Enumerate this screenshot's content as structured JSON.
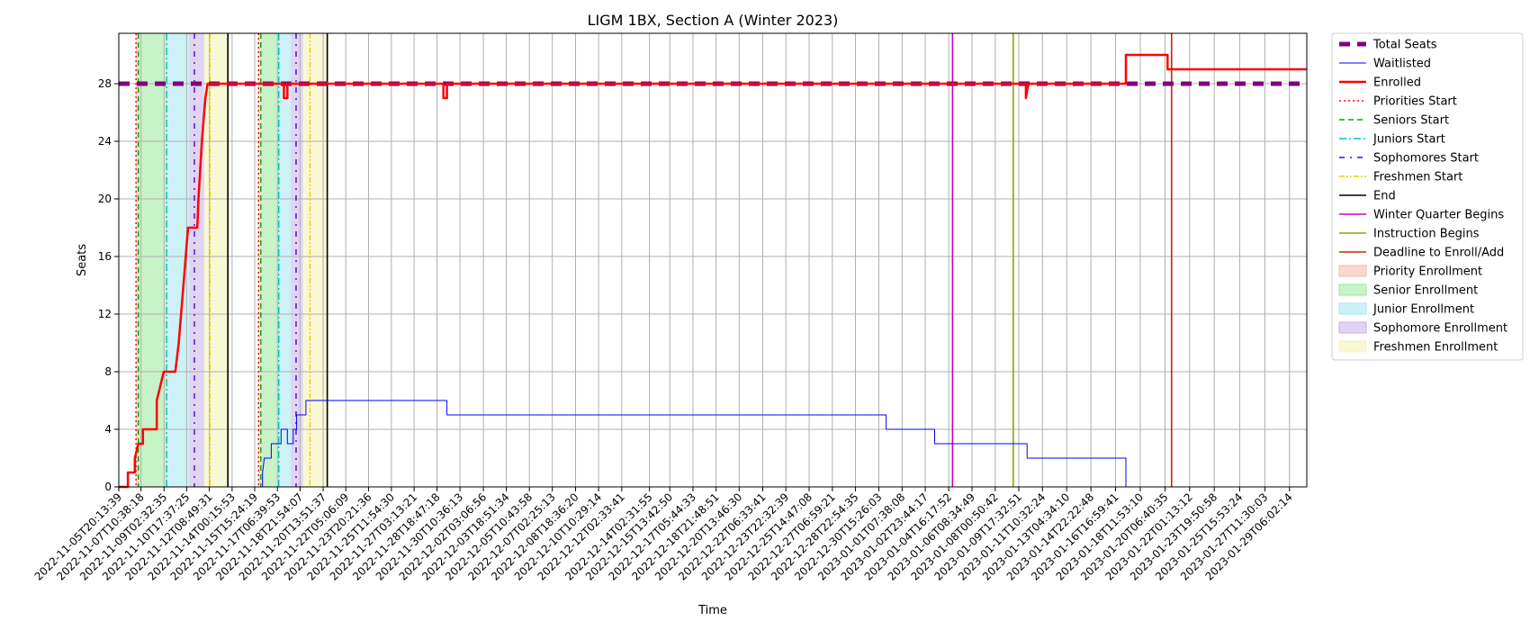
{
  "chart_data": {
    "type": "line",
    "title": "LIGM 1BX, Section A (Winter 2023)",
    "xlabel": "Time",
    "ylabel": "Seats",
    "ylim": [
      0,
      31.5
    ],
    "yticks": [
      0,
      4,
      8,
      12,
      16,
      20,
      24,
      28
    ],
    "grid": true,
    "legend_position": "outside right",
    "xlim": [
      "2022-11-05T20:13:39",
      "2023-01-30T12:00:00"
    ],
    "x_ticks": [
      "2022-11-05T20:13:39",
      "2022-11-07T10:38:18",
      "2022-11-09T02:32:35",
      "2022-11-10T17:37:25",
      "2022-11-12T08:49:31",
      "2022-11-14T00:15:53",
      "2022-11-15T15:24:19",
      "2022-11-17T06:39:53",
      "2022-11-18T21:54:07",
      "2022-11-20T13:51:37",
      "2022-11-22T05:06:09",
      "2022-11-23T20:21:36",
      "2022-11-25T11:54:30",
      "2022-11-27T03:13:21",
      "2022-11-28T18:47:18",
      "2022-11-30T10:36:13",
      "2022-12-02T03:06:56",
      "2022-12-03T18:51:34",
      "2022-12-05T10:43:58",
      "2022-12-07T02:25:13",
      "2022-12-08T18:36:20",
      "2022-12-10T10:29:14",
      "2022-12-12T02:33:41",
      "2022-12-14T02:31:55",
      "2022-12-15T13:42:50",
      "2022-12-17T05:44:33",
      "2022-12-18T21:48:51",
      "2022-12-20T13:46:30",
      "2022-12-22T06:33:41",
      "2022-12-23T22:32:39",
      "2022-12-25T14:47:08",
      "2022-12-27T06:59:21",
      "2022-12-28T22:54:35",
      "2022-12-30T15:26:03",
      "2023-01-01T07:38:08",
      "2023-01-02T23:44:17",
      "2023-01-04T16:17:52",
      "2023-01-06T08:34:49",
      "2023-01-08T00:50:42",
      "2023-01-09T17:32:51",
      "2023-01-11T10:32:24",
      "2023-01-13T04:34:10",
      "2023-01-14T22:22:48",
      "2023-01-16T16:59:41",
      "2023-01-18T11:53:10",
      "2023-01-20T06:40:35",
      "2023-01-22T01:13:12",
      "2023-01-23T19:50:58",
      "2023-01-25T15:53:24",
      "2023-01-27T11:30:03",
      "2023-01-29T06:02:14"
    ],
    "series": [
      {
        "name": "Total Seats",
        "color": "#800080",
        "style": "thick-dashed",
        "points": [
          [
            "2022-11-05T20:13:39",
            28
          ],
          [
            "2023-01-30T12:00:00",
            28
          ]
        ]
      },
      {
        "name": "Waitlisted",
        "color": "#0000ff",
        "style": "solid-thin",
        "points": [
          [
            "2022-11-05T20:13:39",
            0
          ],
          [
            "2022-11-16T05:00:00",
            0
          ],
          [
            "2022-11-16T05:00:00",
            1
          ],
          [
            "2022-11-16T08:00:00",
            2
          ],
          [
            "2022-11-16T20:00:00",
            2
          ],
          [
            "2022-11-16T20:00:00",
            3
          ],
          [
            "2022-11-17T13:00:00",
            3
          ],
          [
            "2022-11-17T13:00:00",
            4
          ],
          [
            "2022-11-18T00:00:00",
            4
          ],
          [
            "2022-11-18T00:00:00",
            3
          ],
          [
            "2022-11-18T10:00:00",
            3
          ],
          [
            "2022-11-18T10:00:00",
            4
          ],
          [
            "2022-11-18T16:00:00",
            4
          ],
          [
            "2022-11-18T16:00:00",
            5
          ],
          [
            "2022-11-19T08:00:00",
            5
          ],
          [
            "2022-11-19T08:00:00",
            6
          ],
          [
            "2022-11-29T12:00:00",
            6
          ],
          [
            "2022-11-29T12:00:00",
            5
          ],
          [
            "2022-12-31T04:00:00",
            5
          ],
          [
            "2022-12-31T04:00:00",
            4
          ],
          [
            "2023-01-03T16:00:00",
            4
          ],
          [
            "2023-01-03T16:00:00",
            3
          ],
          [
            "2023-01-10T08:00:00",
            3
          ],
          [
            "2023-01-10T08:00:00",
            2
          ],
          [
            "2023-01-17T11:00:00",
            2
          ],
          [
            "2023-01-17T11:00:00",
            0
          ],
          [
            "2023-01-30T12:00:00",
            0
          ]
        ]
      },
      {
        "name": "Enrolled",
        "color": "#ff0000",
        "style": "solid-thick",
        "points": [
          [
            "2022-11-05T20:13:39",
            0
          ],
          [
            "2022-11-06T12:00:00",
            0
          ],
          [
            "2022-11-06T12:00:00",
            1
          ],
          [
            "2022-11-07T00:00:00",
            1
          ],
          [
            "2022-11-07T00:00:00",
            2
          ],
          [
            "2022-11-07T06:00:00",
            3
          ],
          [
            "2022-11-07T14:00:00",
            3
          ],
          [
            "2022-11-07T14:00:00",
            4
          ],
          [
            "2022-11-08T14:00:00",
            4
          ],
          [
            "2022-11-08T14:00:00",
            6
          ],
          [
            "2022-11-08T20:00:00",
            7
          ],
          [
            "2022-11-09T02:00:00",
            8
          ],
          [
            "2022-11-09T22:00:00",
            8
          ],
          [
            "2022-11-10T04:00:00",
            10
          ],
          [
            "2022-11-10T10:00:00",
            13
          ],
          [
            "2022-11-10T14:00:00",
            15
          ],
          [
            "2022-11-10T20:00:00",
            18
          ],
          [
            "2022-11-11T12:00:00",
            18
          ],
          [
            "2022-11-11T14:00:00",
            20
          ],
          [
            "2022-11-11T20:00:00",
            24
          ],
          [
            "2022-11-12T02:00:00",
            27
          ],
          [
            "2022-11-12T06:00:00",
            28
          ],
          [
            "2022-11-17T18:00:00",
            28
          ],
          [
            "2022-11-17T18:00:00",
            27
          ],
          [
            "2022-11-18T00:00:00",
            27
          ],
          [
            "2022-11-18T00:00:00",
            28
          ],
          [
            "2022-11-29T06:00:00",
            28
          ],
          [
            "2022-11-29T06:00:00",
            27
          ],
          [
            "2022-11-29T12:00:00",
            27
          ],
          [
            "2022-11-29T12:00:00",
            28
          ],
          [
            "2023-01-10T06:00:00",
            28
          ],
          [
            "2023-01-10T06:00:00",
            27
          ],
          [
            "2023-01-10T10:00:00",
            28
          ],
          [
            "2023-01-17T11:00:00",
            28
          ],
          [
            "2023-01-17T11:00:00",
            30
          ],
          [
            "2023-01-20T11:00:00",
            30
          ],
          [
            "2023-01-20T11:00:00",
            29
          ],
          [
            "2023-01-30T12:00:00",
            29
          ]
        ]
      }
    ],
    "vertical_markers": [
      {
        "name": "Priorities Start",
        "color": "#ff0000",
        "style": "dotted",
        "x": [
          "2022-11-07T02:00:00",
          "2022-11-15T22:00:00"
        ]
      },
      {
        "name": "Seniors Start",
        "color": "#00aa00",
        "style": "dashed",
        "x": [
          "2022-11-07T06:00:00",
          "2022-11-16T02:00:00"
        ]
      },
      {
        "name": "Juniors Start",
        "color": "#00bfbf",
        "style": "dashdot",
        "x": [
          "2022-11-09T07:00:00",
          "2022-11-17T09:00:00"
        ]
      },
      {
        "name": "Sophomores Start",
        "color": "#5500cc",
        "style": "loosedashdot",
        "x": [
          "2022-11-11T07:00:00",
          "2022-11-18T15:00:00"
        ]
      },
      {
        "name": "Freshmen Start",
        "color": "#e6d200",
        "style": "dashdotdot",
        "x": [
          "2022-11-12T10:00:00",
          "2022-11-19T15:00:00"
        ]
      },
      {
        "name": "End",
        "color": "#000000",
        "style": "solid",
        "x": [
          "2022-11-13T17:00:00",
          "2022-11-20T21:00:00"
        ]
      },
      {
        "name": "Winter Quarter Begins",
        "color": "#cc00cc",
        "style": "solid",
        "x": [
          "2023-01-04T23:00:00"
        ]
      },
      {
        "name": "Instruction Begins",
        "color": "#88aa00",
        "style": "solid",
        "x": [
          "2023-01-09T08:00:00"
        ]
      },
      {
        "name": "Deadline to Enroll/Add",
        "color": "#cc2200",
        "style": "solid",
        "x": [
          "2023-01-20T18:00:00"
        ]
      }
    ],
    "shaded_regions": [
      {
        "name": "Priority Enrollment",
        "color": "#f4b9a8",
        "spans": [
          [
            "2022-11-07T02:00:00",
            "2022-11-07T06:00:00"
          ],
          [
            "2022-11-15T22:00:00",
            "2022-11-16T02:00:00"
          ]
        ]
      },
      {
        "name": "Senior Enrollment",
        "color": "#9be89b",
        "spans": [
          [
            "2022-11-07T06:00:00",
            "2022-11-09T07:00:00"
          ],
          [
            "2022-11-16T02:00:00",
            "2022-11-17T09:00:00"
          ]
        ]
      },
      {
        "name": "Junior Enrollment",
        "color": "#a3e8ee",
        "spans": [
          [
            "2022-11-09T07:00:00",
            "2022-11-10T22:00:00"
          ],
          [
            "2022-11-17T09:00:00",
            "2022-11-18T06:00:00"
          ]
        ]
      },
      {
        "name": "Sophomore Enrollment",
        "color": "#c4b0ea",
        "spans": [
          [
            "2022-11-10T22:00:00",
            "2022-11-12T00:00:00"
          ],
          [
            "2022-11-18T06:00:00",
            "2022-11-19T03:00:00"
          ]
        ]
      },
      {
        "name": "Freshmen Enrollment",
        "color": "#f4f3b3",
        "spans": [
          [
            "2022-11-12T00:00:00",
            "2022-11-13T17:00:00"
          ],
          [
            "2022-11-19T03:00:00",
            "2022-11-20T21:00:00"
          ]
        ]
      }
    ],
    "legend": [
      {
        "label": "Total Seats",
        "kind": "line",
        "color": "#800080",
        "style": "thick-dashed"
      },
      {
        "label": "Waitlisted",
        "kind": "line",
        "color": "#0000ff",
        "style": "solid-thin"
      },
      {
        "label": "Enrolled",
        "kind": "line",
        "color": "#ff0000",
        "style": "solid-thick"
      },
      {
        "label": "Priorities Start",
        "kind": "line",
        "color": "#ff0000",
        "style": "dotted"
      },
      {
        "label": "Seniors Start",
        "kind": "line",
        "color": "#00aa00",
        "style": "dashed"
      },
      {
        "label": "Juniors Start",
        "kind": "line",
        "color": "#00bfbf",
        "style": "dashdot"
      },
      {
        "label": "Sophomores Start",
        "kind": "line",
        "color": "#5500cc",
        "style": "loosedashdot"
      },
      {
        "label": "Freshmen Start",
        "kind": "line",
        "color": "#e6d200",
        "style": "dashdotdot"
      },
      {
        "label": "End",
        "kind": "line",
        "color": "#000000",
        "style": "solid"
      },
      {
        "label": "Winter Quarter Begins",
        "kind": "line",
        "color": "#cc00cc",
        "style": "solid"
      },
      {
        "label": "Instruction Begins",
        "kind": "line",
        "color": "#88aa00",
        "style": "solid"
      },
      {
        "label": "Deadline to Enroll/Add",
        "kind": "line",
        "color": "#cc2200",
        "style": "solid"
      },
      {
        "label": "Priority Enrollment",
        "kind": "patch",
        "color": "#f4b9a8"
      },
      {
        "label": "Senior Enrollment",
        "kind": "patch",
        "color": "#9be89b"
      },
      {
        "label": "Junior Enrollment",
        "kind": "patch",
        "color": "#a3e8ee"
      },
      {
        "label": "Sophomore Enrollment",
        "kind": "patch",
        "color": "#c4b0ea"
      },
      {
        "label": "Freshmen Enrollment",
        "kind": "patch",
        "color": "#f4f3b3"
      }
    ]
  }
}
